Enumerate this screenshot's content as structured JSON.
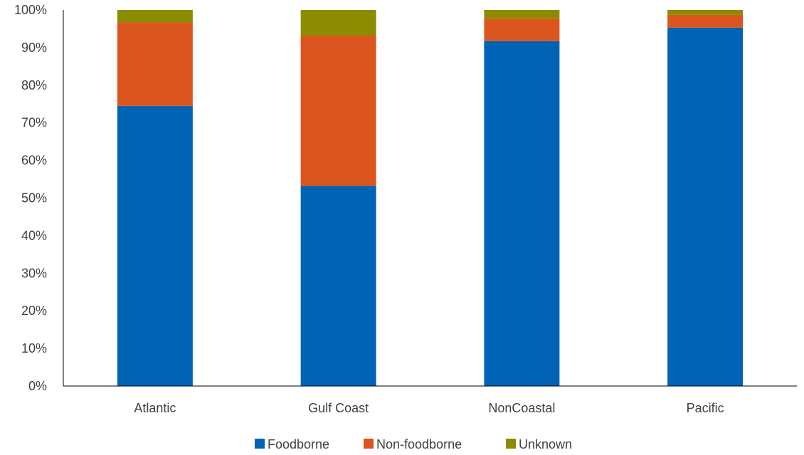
{
  "chart_data": {
    "type": "bar",
    "stacked": true,
    "percent": true,
    "categories": [
      "Atlantic",
      "Gulf Coast",
      "NonCoastal",
      "Pacific"
    ],
    "series": [
      {
        "name": "Foodborne",
        "color": "#0063B5",
        "values": [
          74.5,
          53.2,
          91.7,
          95.3
        ]
      },
      {
        "name": "Non-foodborne",
        "color": "#DB561F",
        "values": [
          22.2,
          40.0,
          6.0,
          3.4
        ]
      },
      {
        "name": "Unknown",
        "color": "#8C8C00",
        "values": [
          3.3,
          6.8,
          2.3,
          1.3
        ]
      }
    ],
    "ylim": [
      0,
      100
    ],
    "yticks": [
      "0%",
      "10%",
      "20%",
      "30%",
      "40%",
      "50%",
      "60%",
      "70%",
      "80%",
      "90%",
      "100%"
    ],
    "grid": false,
    "legend_position": "bottom",
    "title": "",
    "xlabel": "",
    "ylabel": ""
  }
}
